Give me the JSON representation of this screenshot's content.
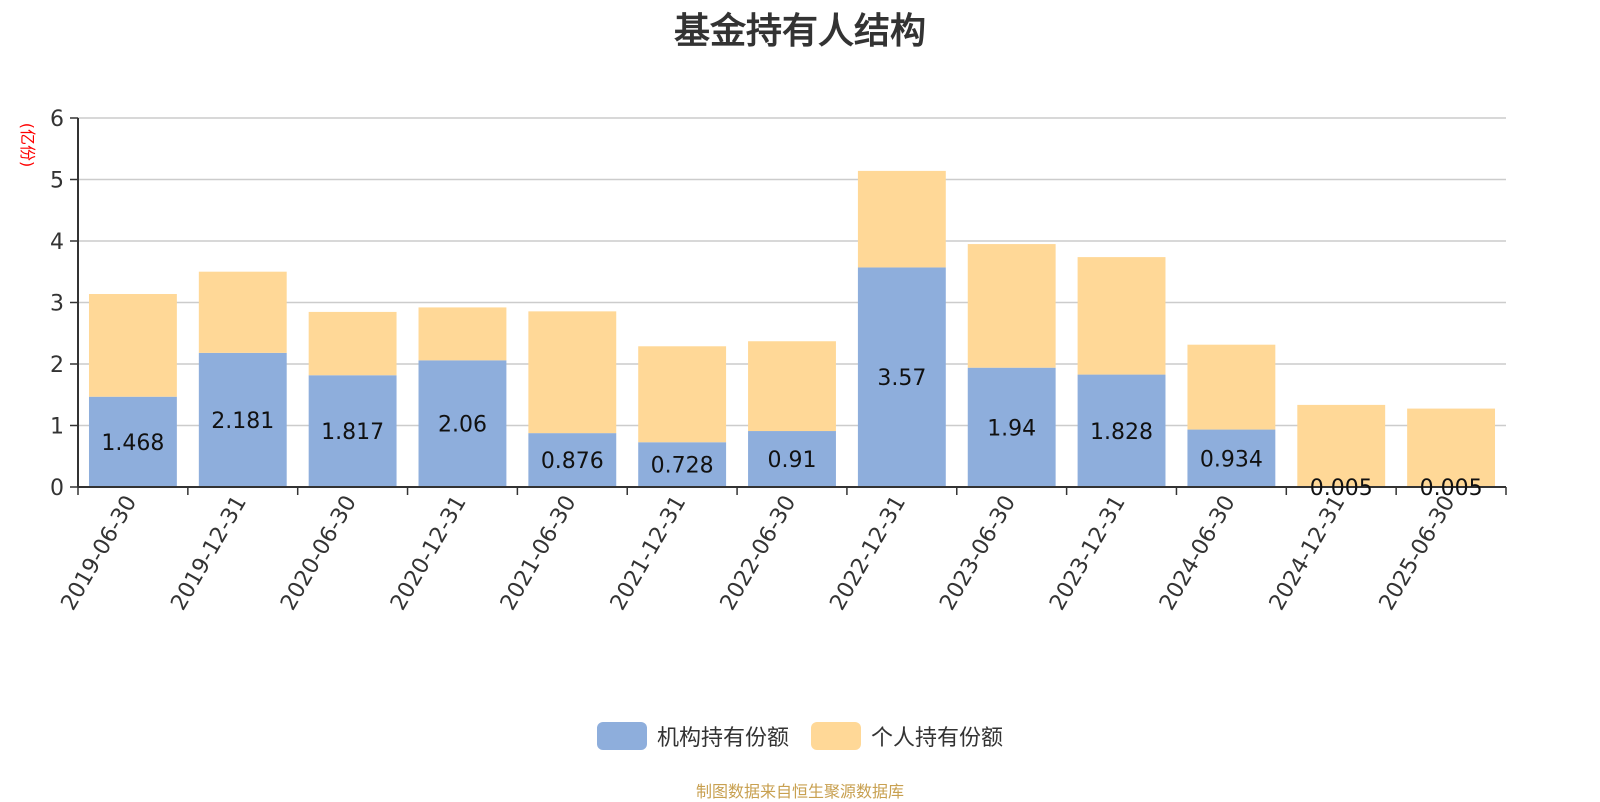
{
  "chart_data": {
    "type": "bar",
    "stacked": true,
    "title": "基金持有人结构",
    "ylabel": "(亿份)",
    "ylim": [
      0,
      6
    ],
    "yticks": [
      0,
      1,
      2,
      3,
      4,
      5,
      6
    ],
    "grid": true,
    "legend_position": "bottom-center",
    "categories": [
      "2019-06-30",
      "2019-12-31",
      "2020-06-30",
      "2020-12-31",
      "2021-06-30",
      "2021-12-31",
      "2022-06-30",
      "2022-12-31",
      "2023-06-30",
      "2023-12-31",
      "2024-06-30",
      "2024-12-31",
      "2025-06-30"
    ],
    "series": [
      {
        "name": "机构持有份额",
        "color": "#8eaedc",
        "values": [
          1.468,
          2.181,
          1.817,
          2.06,
          0.876,
          0.728,
          0.91,
          3.57,
          1.94,
          1.828,
          0.934,
          0.005,
          0.005
        ],
        "labels": [
          "1.468",
          "2.181",
          "1.817",
          "2.06",
          "0.876",
          "0.728",
          "0.91",
          "3.57",
          "1.94",
          "1.828",
          "0.934",
          "0.005",
          "0.005"
        ]
      },
      {
        "name": "个人持有份额",
        "color": "#ffd897",
        "values": [
          1.67,
          1.32,
          1.03,
          0.86,
          1.98,
          1.56,
          1.46,
          1.57,
          2.01,
          1.91,
          1.38,
          1.33,
          1.27
        ]
      }
    ]
  },
  "source_note": "制图数据来自恒生聚源数据库",
  "colors": {
    "axis": "#333333",
    "grid": "#cccccc",
    "ylabel": "#ff0000",
    "source": "#c8a050"
  }
}
